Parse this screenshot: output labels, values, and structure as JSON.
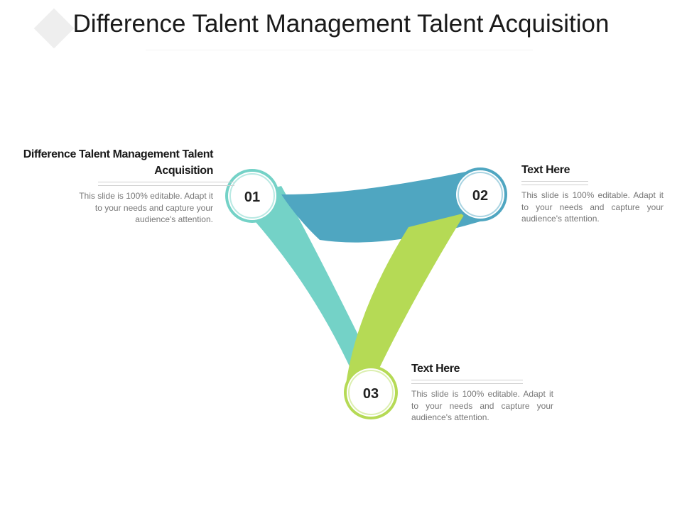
{
  "title": "Difference Talent Management Talent Acquisition",
  "colors": {
    "teal_light": "#74d2c7",
    "blue": "#4fa6c1",
    "green": "#b5da55"
  },
  "steps": [
    {
      "number": "01",
      "heading": "Difference Talent Management Talent Acquisition",
      "body": "This slide is 100% editable. Adapt it to your needs and capture your audience's attention."
    },
    {
      "number": "02",
      "heading": "Text Here",
      "body": "This slide is 100% editable. Adapt it to your needs and capture your audience's attention."
    },
    {
      "number": "03",
      "heading": "Text Here",
      "body": "This slide is 100% editable. Adapt it to your needs and capture your audience's attention."
    }
  ]
}
